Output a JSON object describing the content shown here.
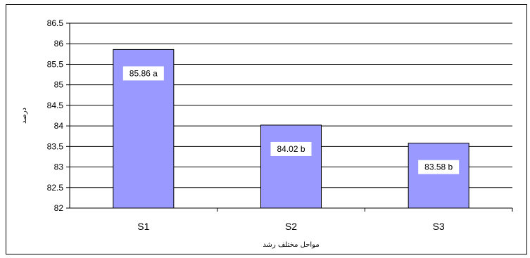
{
  "chart_data": {
    "type": "bar",
    "categories": [
      "S1",
      "S2",
      "S3"
    ],
    "values": [
      85.86,
      84.02,
      83.58
    ],
    "data_labels": [
      "85.86 a",
      "84.02 b",
      "83.58 b"
    ],
    "xlabel": "مواحل مختلف رشد",
    "ylabel": "درصد",
    "ylim": [
      82,
      86.5
    ],
    "yticks": [
      "82",
      "82.5",
      "83",
      "83.5",
      "84",
      "84.5",
      "85",
      "85.5",
      "86",
      "86.5"
    ],
    "ytick_values": [
      82,
      82.5,
      83,
      83.5,
      84,
      84.5,
      85,
      85.5,
      86,
      86.5
    ],
    "grid": true,
    "bar_color": "#9999ff"
  }
}
